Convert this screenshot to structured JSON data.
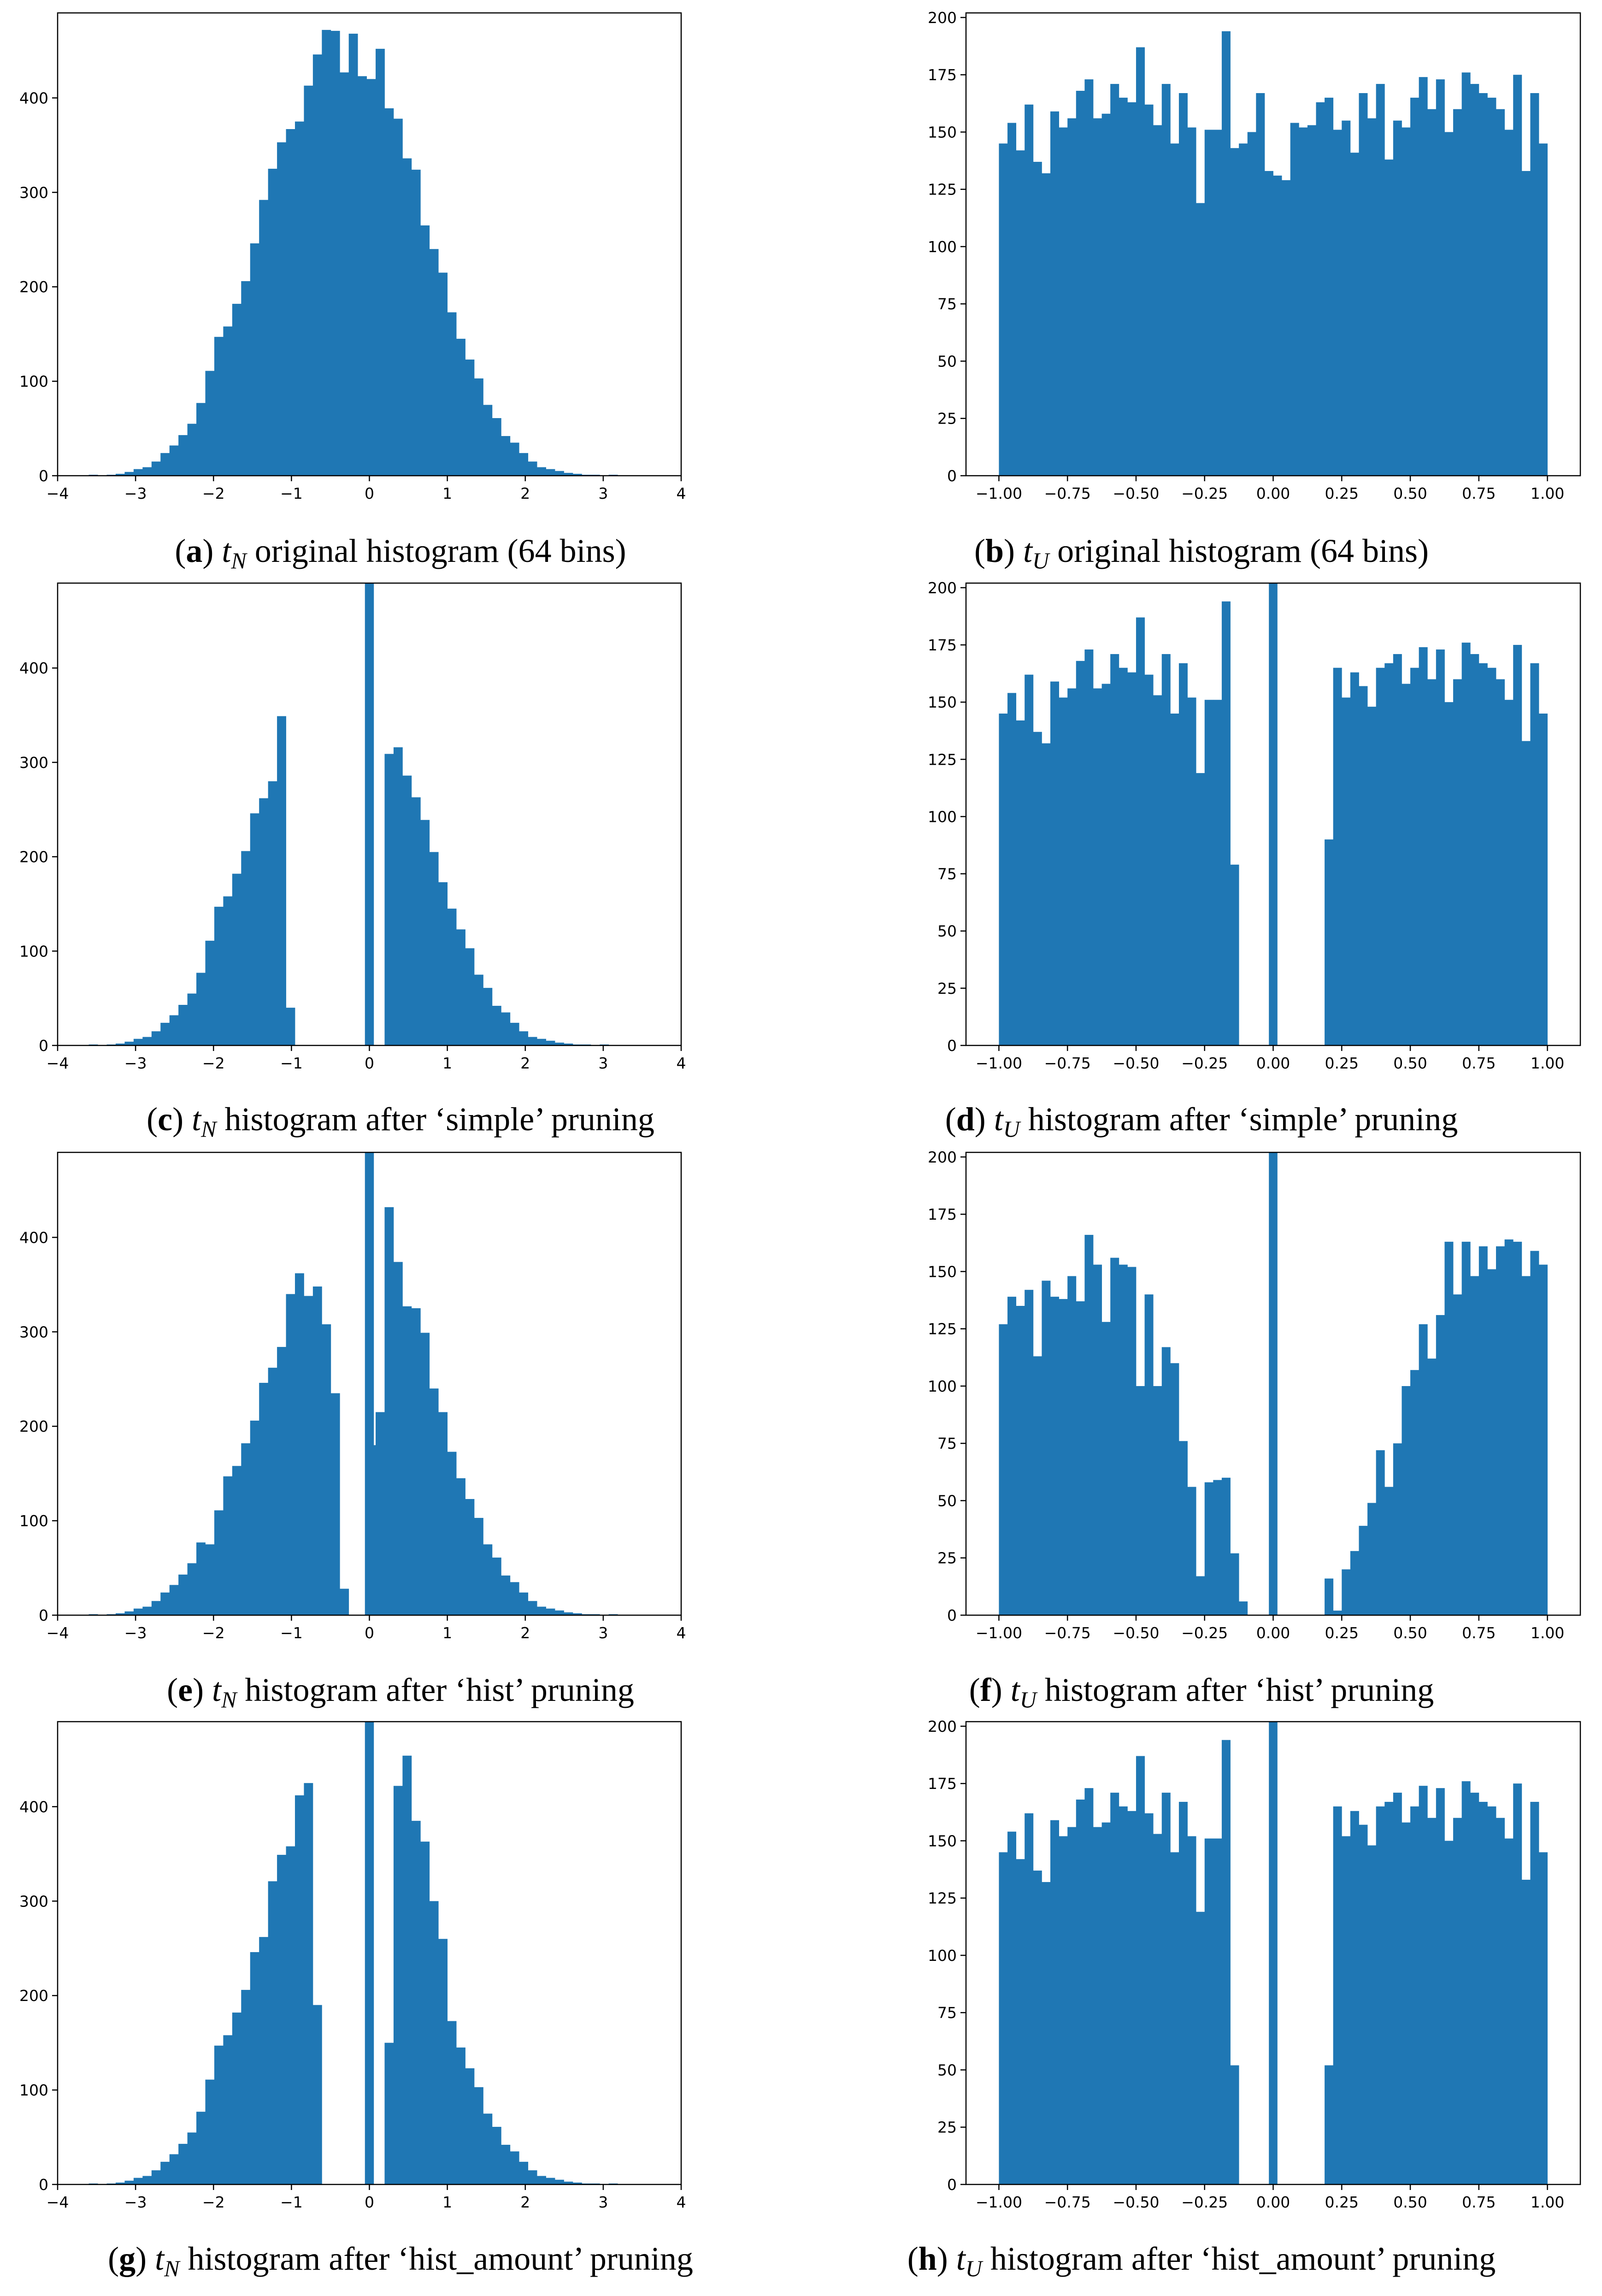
{
  "figure": {
    "bar_color": "#1f77b4",
    "axis_color": "#000000"
  },
  "chart_data": [
    {
      "id": "a",
      "type": "bar",
      "panel_label": "a",
      "caption_var": "t",
      "caption_sub": "N",
      "caption_text": "original histogram (64 bins)",
      "xlim": [
        -4,
        4
      ],
      "ylim": [
        0,
        490
      ],
      "xticks": [
        -4,
        -3,
        -2,
        -1,
        0,
        1,
        2,
        3,
        4
      ],
      "xtick_labels": [
        "−4",
        "−3",
        "−2",
        "−1",
        "0",
        "1",
        "2",
        "3",
        "4"
      ],
      "yticks": [
        0,
        100,
        200,
        300,
        400
      ],
      "ytick_labels": [
        "0",
        "100",
        "200",
        "300",
        "400"
      ],
      "bin_start": -3.6,
      "bin_width": 0.115,
      "values": [
        1,
        0,
        1,
        2,
        4,
        7,
        9,
        15,
        24,
        32,
        43,
        55,
        77,
        111,
        147,
        158,
        182,
        206,
        246,
        292,
        325,
        353,
        367,
        375,
        413,
        446,
        472,
        471,
        427,
        468,
        423,
        420,
        452,
        389,
        378,
        336,
        324,
        265,
        240,
        215,
        173,
        145,
        123,
        103,
        75,
        61,
        42,
        35,
        24,
        15,
        9,
        7,
        5,
        3,
        2,
        1,
        1,
        0,
        1,
        0,
        0,
        0,
        0,
        0
      ]
    },
    {
      "id": "b",
      "type": "bar",
      "panel_label": "b",
      "caption_var": "t",
      "caption_sub": "U",
      "caption_text": "original histogram (64 bins)",
      "xlim": [
        -1.12,
        1.12
      ],
      "ylim": [
        0,
        202
      ],
      "xticks": [
        -1.0,
        -0.75,
        -0.5,
        -0.25,
        0.0,
        0.25,
        0.5,
        0.75,
        1.0
      ],
      "xtick_labels": [
        "−1.00",
        "−0.75",
        "−0.50",
        "−0.25",
        "0.00",
        "0.25",
        "0.50",
        "0.75",
        "1.00"
      ],
      "yticks": [
        0,
        25,
        50,
        75,
        100,
        125,
        150,
        175,
        200
      ],
      "ytick_labels": [
        "0",
        "25",
        "50",
        "75",
        "100",
        "125",
        "150",
        "175",
        "200"
      ],
      "bin_start": -1.0,
      "bin_width": 0.03125,
      "values": [
        145,
        154,
        142,
        162,
        137,
        132,
        159,
        152,
        156,
        168,
        173,
        156,
        158,
        171,
        165,
        163,
        187,
        162,
        153,
        171,
        145,
        167,
        152,
        119,
        151,
        151,
        194,
        143,
        145,
        150,
        167,
        133,
        131,
        129,
        154,
        152,
        153,
        163,
        165,
        151,
        155,
        141,
        167,
        156,
        171,
        138,
        155,
        152,
        165,
        174,
        160,
        173,
        150,
        160,
        176,
        171,
        167,
        165,
        160,
        151,
        175,
        133,
        167,
        145
      ]
    },
    {
      "id": "c",
      "type": "bar",
      "panel_label": "c",
      "caption_var": "t",
      "caption_sub": "N",
      "caption_text": "histogram after ‘simple’ pruning",
      "xlim": [
        -4,
        4
      ],
      "ylim": [
        0,
        490
      ],
      "xticks": [
        -4,
        -3,
        -2,
        -1,
        0,
        1,
        2,
        3,
        4
      ],
      "xtick_labels": [
        "−4",
        "−3",
        "−2",
        "−1",
        "0",
        "1",
        "2",
        "3",
        "4"
      ],
      "yticks": [
        0,
        100,
        200,
        300,
        400
      ],
      "ytick_labels": [
        "0",
        "100",
        "200",
        "300",
        "400"
      ],
      "bin_start": -3.6,
      "bin_width": 0.115,
      "values": [
        1,
        0,
        1,
        2,
        4,
        7,
        9,
        15,
        24,
        32,
        43,
        55,
        77,
        111,
        147,
        158,
        182,
        206,
        246,
        262,
        280,
        349,
        40,
        0,
        0,
        0,
        0,
        0,
        0,
        0,
        0,
        0,
        0,
        309,
        316,
        286,
        263,
        239,
        205,
        173,
        145,
        123,
        103,
        75,
        61,
        42,
        35,
        24,
        15,
        9,
        7,
        5,
        3,
        2,
        1,
        1,
        0,
        1,
        0,
        0,
        0,
        0,
        0,
        0
      ],
      "spike": {
        "x": 0.0,
        "value": 490
      }
    },
    {
      "id": "d",
      "type": "bar",
      "panel_label": "d",
      "caption_var": "t",
      "caption_sub": "U",
      "caption_text": "histogram after ‘simple’ pruning",
      "xlim": [
        -1.12,
        1.12
      ],
      "ylim": [
        0,
        202
      ],
      "xticks": [
        -1.0,
        -0.75,
        -0.5,
        -0.25,
        0.0,
        0.25,
        0.5,
        0.75,
        1.0
      ],
      "xtick_labels": [
        "−1.00",
        "−0.75",
        "−0.50",
        "−0.25",
        "0.00",
        "0.25",
        "0.50",
        "0.75",
        "1.00"
      ],
      "yticks": [
        0,
        25,
        50,
        75,
        100,
        125,
        150,
        175,
        200
      ],
      "ytick_labels": [
        "0",
        "25",
        "50",
        "75",
        "100",
        "125",
        "150",
        "175",
        "200"
      ],
      "bin_start": -1.0,
      "bin_width": 0.03125,
      "values": [
        145,
        154,
        142,
        162,
        137,
        132,
        159,
        152,
        156,
        168,
        173,
        156,
        158,
        171,
        165,
        163,
        187,
        162,
        153,
        171,
        145,
        167,
        152,
        119,
        151,
        151,
        194,
        79,
        0,
        0,
        0,
        0,
        0,
        0,
        0,
        0,
        0,
        0,
        90,
        165,
        152,
        163,
        157,
        148,
        165,
        167,
        171,
        158,
        165,
        174,
        160,
        173,
        150,
        160,
        176,
        171,
        167,
        165,
        160,
        151,
        175,
        133,
        167,
        145
      ],
      "spike": {
        "x": 0.0,
        "value": 202
      }
    },
    {
      "id": "e",
      "type": "bar",
      "panel_label": "e",
      "caption_var": "t",
      "caption_sub": "N",
      "caption_text": "histogram after ‘hist’ pruning",
      "xlim": [
        -4,
        4
      ],
      "ylim": [
        0,
        490
      ],
      "xticks": [
        -4,
        -3,
        -2,
        -1,
        0,
        1,
        2,
        3,
        4
      ],
      "xtick_labels": [
        "−4",
        "−3",
        "−2",
        "−1",
        "0",
        "1",
        "2",
        "3",
        "4"
      ],
      "yticks": [
        0,
        100,
        200,
        300,
        400
      ],
      "ytick_labels": [
        "0",
        "100",
        "200",
        "300",
        "400"
      ],
      "bin_start": -3.6,
      "bin_width": 0.115,
      "values": [
        1,
        0,
        1,
        2,
        4,
        7,
        9,
        15,
        24,
        32,
        43,
        55,
        77,
        75,
        111,
        147,
        158,
        182,
        206,
        246,
        262,
        284,
        340,
        362,
        338,
        348,
        308,
        235,
        28,
        0,
        0,
        180,
        215,
        432,
        374,
        327,
        325,
        299,
        240,
        215,
        173,
        145,
        123,
        103,
        75,
        61,
        42,
        35,
        24,
        15,
        9,
        7,
        5,
        3,
        2,
        1,
        1,
        0,
        1,
        0,
        0,
        0,
        0,
        0
      ],
      "spike": {
        "x": 0.0,
        "value": 490
      }
    },
    {
      "id": "f",
      "type": "bar",
      "panel_label": "f",
      "caption_var": "t",
      "caption_sub": "U",
      "caption_text": "histogram after ‘hist’ pruning",
      "xlim": [
        -1.12,
        1.12
      ],
      "ylim": [
        0,
        202
      ],
      "xticks": [
        -1.0,
        -0.75,
        -0.5,
        -0.25,
        0.0,
        0.25,
        0.5,
        0.75,
        1.0
      ],
      "xtick_labels": [
        "−1.00",
        "−0.75",
        "−0.50",
        "−0.25",
        "0.00",
        "0.25",
        "0.50",
        "0.75",
        "1.00"
      ],
      "yticks": [
        0,
        25,
        50,
        75,
        100,
        125,
        150,
        175,
        200
      ],
      "ytick_labels": [
        "0",
        "25",
        "50",
        "75",
        "100",
        "125",
        "150",
        "175",
        "200"
      ],
      "bin_start": -1.0,
      "bin_width": 0.03125,
      "values": [
        127,
        139,
        135,
        142,
        113,
        146,
        139,
        138,
        148,
        137,
        166,
        153,
        128,
        156,
        153,
        152,
        100,
        140,
        100,
        117,
        110,
        76,
        56,
        17,
        58,
        59,
        60,
        27,
        6,
        0,
        0,
        0,
        0,
        0,
        0,
        0,
        0,
        0,
        16,
        2,
        20,
        28,
        39,
        49,
        72,
        56,
        75,
        100,
        107,
        127,
        112,
        131,
        163,
        140,
        163,
        148,
        161,
        151,
        161,
        164,
        163,
        148,
        159,
        153
      ],
      "spike": {
        "x": 0.0,
        "value": 202
      }
    },
    {
      "id": "g",
      "type": "bar",
      "panel_label": "g",
      "caption_var": "t",
      "caption_sub": "N",
      "caption_text": "histogram after ‘hist_amount’ pruning",
      "xlim": [
        -4,
        4
      ],
      "ylim": [
        0,
        490
      ],
      "xticks": [
        -4,
        -3,
        -2,
        -1,
        0,
        1,
        2,
        3,
        4
      ],
      "xtick_labels": [
        "−4",
        "−3",
        "−2",
        "−1",
        "0",
        "1",
        "2",
        "3",
        "4"
      ],
      "yticks": [
        0,
        100,
        200,
        300,
        400
      ],
      "ytick_labels": [
        "0",
        "100",
        "200",
        "300",
        "400"
      ],
      "bin_start": -3.6,
      "bin_width": 0.115,
      "values": [
        1,
        0,
        1,
        2,
        4,
        7,
        9,
        15,
        24,
        32,
        43,
        55,
        77,
        111,
        147,
        158,
        182,
        206,
        246,
        262,
        321,
        349,
        358,
        412,
        425,
        190,
        0,
        0,
        0,
        0,
        0,
        0,
        0,
        150,
        422,
        454,
        385,
        363,
        300,
        260,
        173,
        145,
        123,
        103,
        75,
        61,
        42,
        35,
        24,
        15,
        9,
        7,
        5,
        3,
        2,
        1,
        1,
        0,
        1,
        0,
        0,
        0,
        0,
        0
      ],
      "spike": {
        "x": 0.0,
        "value": 490
      }
    },
    {
      "id": "h",
      "type": "bar",
      "panel_label": "h",
      "caption_var": "t",
      "caption_sub": "U",
      "caption_text": "histogram after ‘hist_amount’ pruning",
      "xlim": [
        -1.12,
        1.12
      ],
      "ylim": [
        0,
        202
      ],
      "xticks": [
        -1.0,
        -0.75,
        -0.5,
        -0.25,
        0.0,
        0.25,
        0.5,
        0.75,
        1.0
      ],
      "xtick_labels": [
        "−1.00",
        "−0.75",
        "−0.50",
        "−0.25",
        "0.00",
        "0.25",
        "0.50",
        "0.75",
        "1.00"
      ],
      "yticks": [
        0,
        25,
        50,
        75,
        100,
        125,
        150,
        175,
        200
      ],
      "ytick_labels": [
        "0",
        "25",
        "50",
        "75",
        "100",
        "125",
        "150",
        "175",
        "200"
      ],
      "bin_start": -1.0,
      "bin_width": 0.03125,
      "values": [
        145,
        154,
        142,
        162,
        137,
        132,
        159,
        152,
        156,
        168,
        173,
        156,
        158,
        171,
        165,
        163,
        187,
        162,
        153,
        171,
        145,
        167,
        152,
        119,
        151,
        151,
        194,
        52,
        0,
        0,
        0,
        0,
        0,
        0,
        0,
        0,
        0,
        0,
        52,
        165,
        152,
        163,
        157,
        148,
        165,
        167,
        171,
        158,
        165,
        174,
        160,
        173,
        150,
        160,
        176,
        171,
        167,
        165,
        160,
        151,
        175,
        133,
        167,
        145
      ],
      "spike": {
        "x": 0.0,
        "value": 202
      }
    }
  ]
}
